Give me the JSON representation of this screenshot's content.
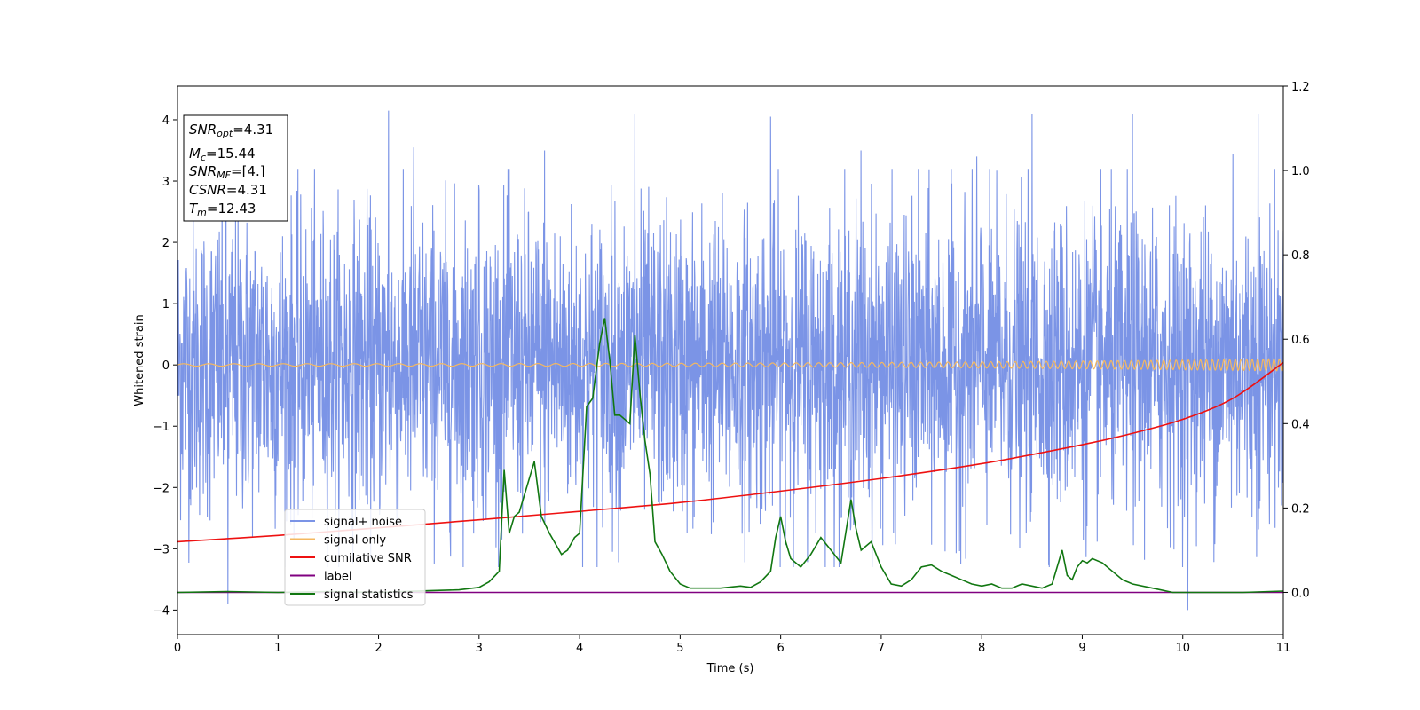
{
  "chart_data": {
    "type": "line",
    "xlabel": "Time (s)",
    "ylabel": "Whitened strain",
    "xlim": [
      0,
      11
    ],
    "ylim": [
      -4.4,
      4.55
    ],
    "y2lim": [
      -0.1,
      1.2
    ],
    "xticks": [
      "0",
      "1",
      "2",
      "3",
      "4",
      "5",
      "6",
      "7",
      "8",
      "9",
      "10",
      "11"
    ],
    "yticks": [
      "−4",
      "−3",
      "−2",
      "−1",
      "0",
      "1",
      "2",
      "3",
      "4"
    ],
    "y2ticks": [
      "0.0",
      "0.2",
      "0.4",
      "0.6",
      "0.8",
      "1.0",
      "1.2"
    ],
    "grid": false,
    "legend_position": "lower-left",
    "stats_box": [
      {
        "name": "SNR",
        "sub": "opt",
        "value": "=4.31"
      },
      {
        "name": "M",
        "sub": "c",
        "value": "=15.44"
      },
      {
        "name": "SNR",
        "sub": "MF",
        "value": "=[4.]"
      },
      {
        "name": "CSNR",
        "sub": "",
        "value": "=4.31"
      },
      {
        "name": "T",
        "sub": "m",
        "value": "=12.43"
      }
    ],
    "series": [
      {
        "name": "signal+ noise",
        "color": "#7b94e6",
        "axis": "left",
        "kind": "noise",
        "approx_amplitude": 1.5,
        "peaks": [
          [
            0.5,
            -3.9
          ],
          [
            2.1,
            4.15
          ],
          [
            2.35,
            3.55
          ],
          [
            3.0,
            2.85
          ],
          [
            3.3,
            3.2
          ],
          [
            3.65,
            3.5
          ],
          [
            4.55,
            4.1
          ],
          [
            5.9,
            4.05
          ],
          [
            6.8,
            3.5
          ],
          [
            7.95,
            3.4
          ],
          [
            8.5,
            4.1
          ],
          [
            9.5,
            4.1
          ],
          [
            10.05,
            -4.0
          ],
          [
            10.5,
            3.45
          ],
          [
            10.75,
            4.1
          ]
        ]
      },
      {
        "name": "signal only",
        "color": "#f5b860",
        "axis": "left",
        "kind": "chirp",
        "amplitude_start": 0.02,
        "amplitude_end": 0.1
      },
      {
        "name": "cumilative SNR",
        "color": "#ee1111",
        "axis": "right",
        "x": [
          0,
          1,
          2,
          3,
          4,
          5,
          6,
          7,
          8,
          9,
          9.5,
          10,
          10.5,
          11
        ],
        "y": [
          0.12,
          0.135,
          0.153,
          0.172,
          0.192,
          0.213,
          0.24,
          0.27,
          0.305,
          0.35,
          0.377,
          0.41,
          0.46,
          0.545
        ]
      },
      {
        "name": "label",
        "color": "#800080",
        "axis": "right",
        "x": [
          0,
          11
        ],
        "y": [
          0.0,
          0.0
        ]
      },
      {
        "name": "signal statistics",
        "color": "#117711",
        "axis": "right",
        "x": [
          0,
          0.5,
          1,
          1.5,
          2,
          2.5,
          2.8,
          3.0,
          3.1,
          3.2,
          3.25,
          3.3,
          3.35,
          3.4,
          3.55,
          3.62,
          3.7,
          3.82,
          3.88,
          3.95,
          4.0,
          4.07,
          4.13,
          4.2,
          4.25,
          4.3,
          4.35,
          4.4,
          4.5,
          4.55,
          4.6,
          4.65,
          4.7,
          4.75,
          4.82,
          4.9,
          5.0,
          5.1,
          5.2,
          5.4,
          5.6,
          5.7,
          5.8,
          5.9,
          5.95,
          6.0,
          6.05,
          6.1,
          6.2,
          6.3,
          6.4,
          6.5,
          6.6,
          6.7,
          6.75,
          6.8,
          6.9,
          7.0,
          7.1,
          7.2,
          7.3,
          7.4,
          7.5,
          7.6,
          7.7,
          7.8,
          7.9,
          8.0,
          8.1,
          8.2,
          8.3,
          8.4,
          8.5,
          8.6,
          8.7,
          8.8,
          8.85,
          8.9,
          8.95,
          9.0,
          9.05,
          9.1,
          9.2,
          9.3,
          9.4,
          9.5,
          9.7,
          9.9,
          10.0,
          10.3,
          10.6,
          11.0
        ],
        "y": [
          0.0,
          0.002,
          0.0,
          0.002,
          0.0,
          0.004,
          0.006,
          0.012,
          0.025,
          0.05,
          0.29,
          0.14,
          0.18,
          0.19,
          0.31,
          0.18,
          0.14,
          0.09,
          0.1,
          0.13,
          0.14,
          0.44,
          0.46,
          0.59,
          0.65,
          0.55,
          0.42,
          0.42,
          0.4,
          0.61,
          0.47,
          0.36,
          0.28,
          0.12,
          0.09,
          0.05,
          0.02,
          0.01,
          0.01,
          0.01,
          0.015,
          0.012,
          0.025,
          0.05,
          0.13,
          0.18,
          0.12,
          0.08,
          0.06,
          0.09,
          0.13,
          0.1,
          0.07,
          0.22,
          0.15,
          0.1,
          0.12,
          0.06,
          0.02,
          0.015,
          0.03,
          0.06,
          0.065,
          0.05,
          0.04,
          0.03,
          0.02,
          0.015,
          0.02,
          0.01,
          0.01,
          0.02,
          0.015,
          0.01,
          0.02,
          0.1,
          0.04,
          0.03,
          0.06,
          0.075,
          0.07,
          0.08,
          0.07,
          0.05,
          0.03,
          0.02,
          0.01,
          0.0,
          0.0,
          0.0,
          0.0,
          0.003
        ]
      }
    ]
  }
}
